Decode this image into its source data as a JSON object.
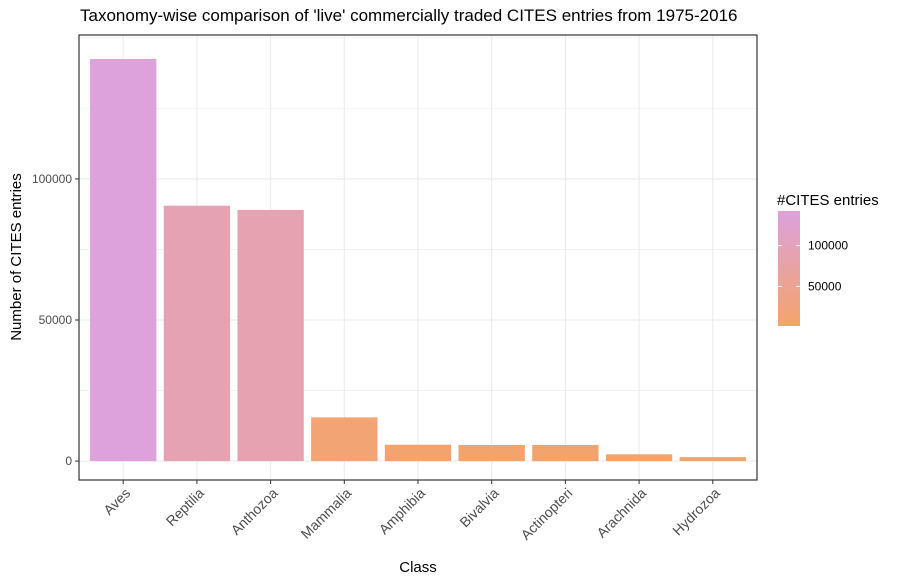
{
  "chart_data": {
    "type": "bar",
    "title": "Taxonomy-wise comparison of 'live' commercially traded CITES entries from 1975-2016",
    "xlabel": "Class",
    "ylabel": "Number of CITES entries",
    "categories": [
      "Aves",
      "Reptilia",
      "Anthozoa",
      "Mammalia",
      "Amphibia",
      "Bivalvia",
      "Actinopteri",
      "Arachnida",
      "Hydrozoa"
    ],
    "values": [
      142500,
      90500,
      89000,
      15500,
      5800,
      5700,
      5700,
      2400,
      1400
    ],
    "ylim": [
      -6700,
      151000
    ],
    "yticks": [
      0,
      50000,
      100000
    ],
    "ytick_labels": [
      "0",
      "50000",
      "100000"
    ],
    "grid": true,
    "legend": {
      "title": "#CITES entries",
      "placement": "right",
      "labels": [
        "100000",
        "50000"
      ],
      "label_values": [
        100000,
        50000
      ],
      "range": [
        1400,
        142500
      ],
      "color_low": "#f4a46a",
      "color_high": "#dda1dc"
    }
  }
}
